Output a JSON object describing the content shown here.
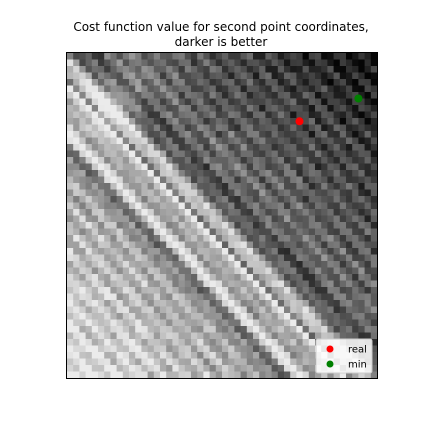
{
  "chart_data": {
    "type": "heatmap",
    "title": "Cost function value for second point coordinates,\ndarker is better",
    "title_lines": [
      "Cost function value for second point coordinates,",
      "darker is better"
    ],
    "xlabel": "",
    "ylabel": "",
    "colormap": "gray",
    "color_meaning": "darker is better (lower cost)",
    "axes_visible": false,
    "grid": false,
    "grid_size": [
      50,
      50
    ],
    "series": [
      {
        "name": "real",
        "color": "#ff0000",
        "x": 37.5,
        "y": 10.5
      },
      {
        "name": "min",
        "color": "#008000",
        "x": 47,
        "y": 7
      }
    ],
    "legend": {
      "placement": "lower-right",
      "entries": [
        {
          "label": "real",
          "color": "#ff0000"
        },
        {
          "label": "min",
          "color": "#008000"
        }
      ]
    }
  }
}
